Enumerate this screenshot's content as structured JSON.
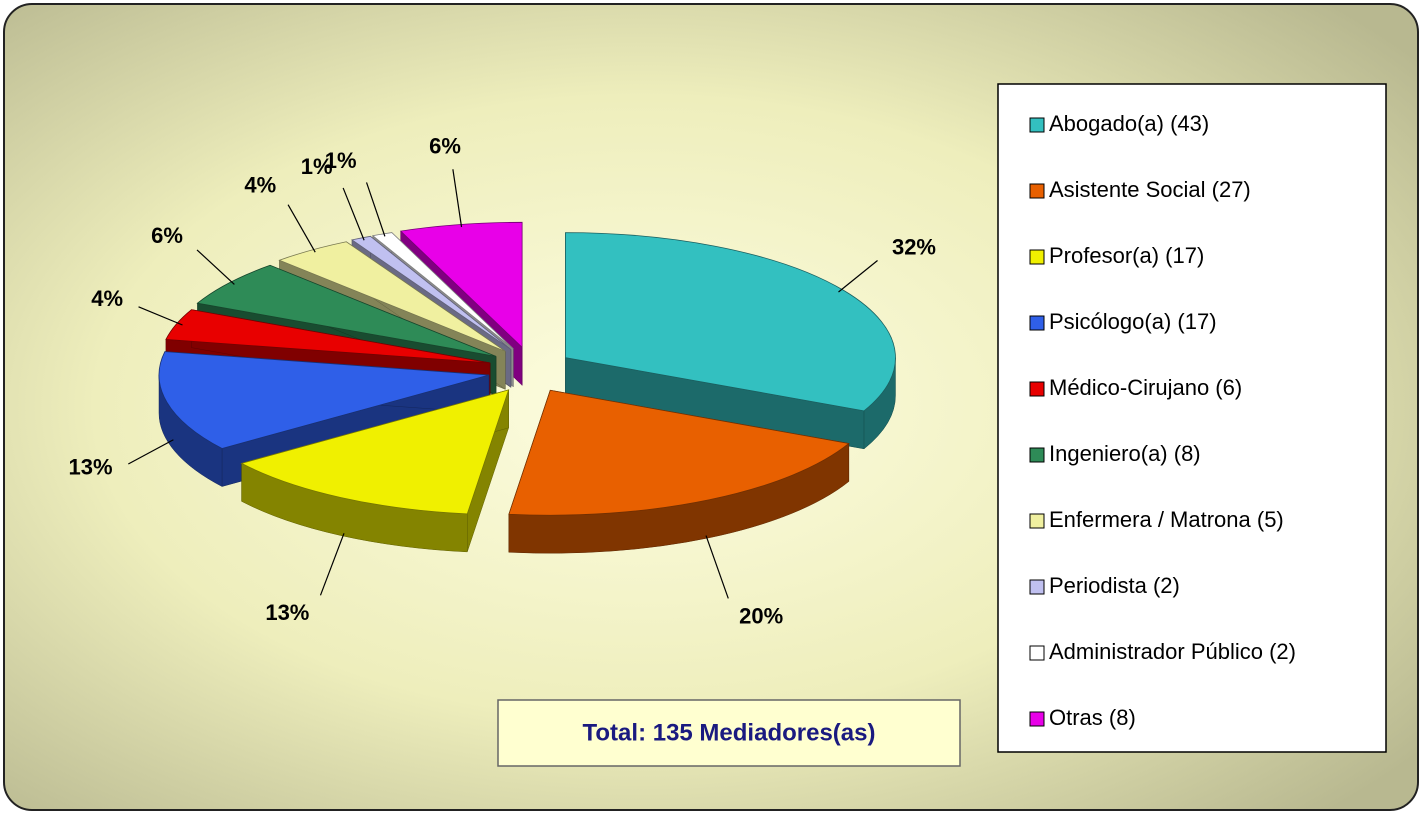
{
  "chart_data": {
    "type": "pie",
    "categories": [
      "Abogado(a) (43)",
      "Asistente Social (27)",
      "Profesor(a) (17)",
      "Psicólogo(a) (17)",
      "Médico-Cirujano (6)",
      "Ingeniero(a) (8)",
      "Enfermera / Matrona (5)",
      "Periodista (2)",
      "Administrador Público (2)",
      "Otras (8)"
    ],
    "values": [
      32,
      20,
      13,
      13,
      4,
      6,
      4,
      1,
      1,
      6
    ],
    "value_labels": [
      "32%",
      "20%",
      "13%",
      "13%",
      "4%",
      "6%",
      "4%",
      "1%",
      "1%",
      "6%"
    ],
    "colors": [
      "#33c0c0",
      "#e86000",
      "#f0f000",
      "#2f5fe8",
      "#e80000",
      "#2e8b57",
      "#f0f0a0",
      "#c0c0f0",
      "#ffffff",
      "#e800e8"
    ],
    "legend": "right",
    "annotation": "Total: 135 Mediadores(as)"
  }
}
